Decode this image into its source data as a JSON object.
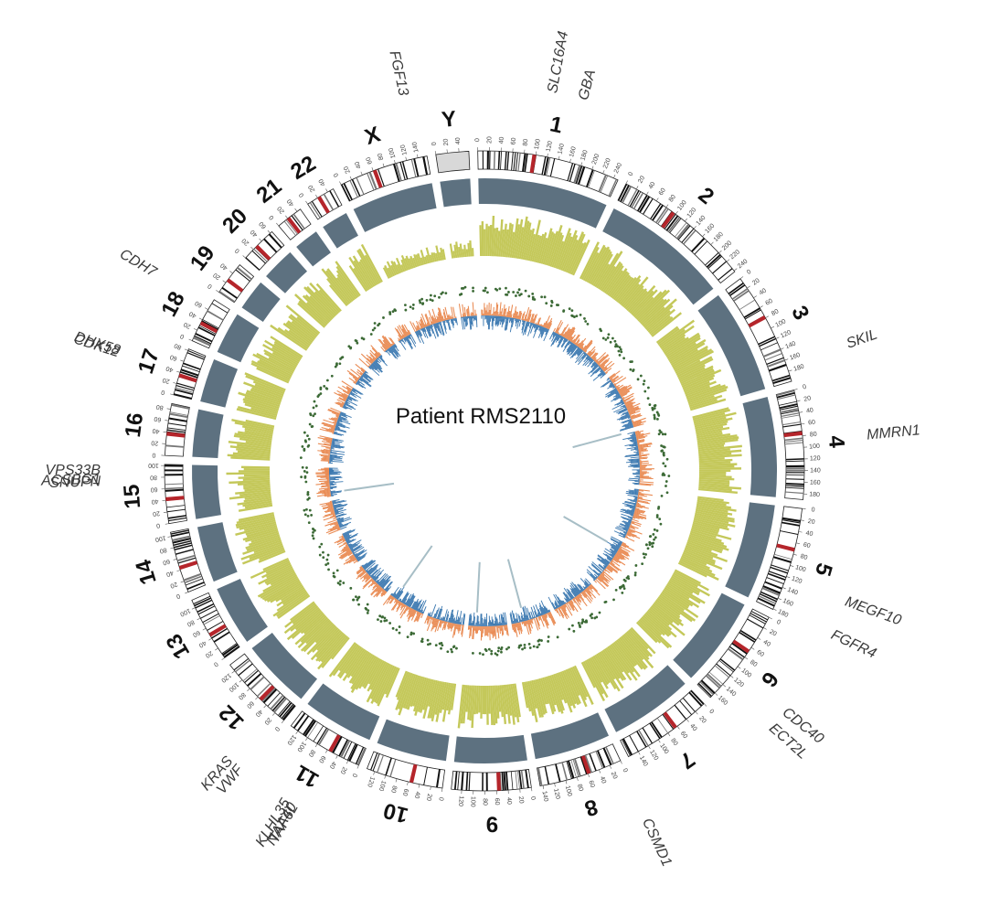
{
  "title": "Patient RMS2110",
  "colors": {
    "cnv_block": "#5d7180",
    "baf_fill": "#c4c85a",
    "depth_orange": "#e98a52",
    "depth_blue": "#3b78b0",
    "sv_points": "#3c6a36",
    "ideogram_band": "#111111",
    "centromere": "#b5252b",
    "gene_highlight": "#9d6bff"
  },
  "chromosomes": [
    {
      "name": "1",
      "length": 248,
      "ticks": [
        "0",
        "20",
        "40",
        "60",
        "80",
        "100",
        "120",
        "140",
        "160",
        "180",
        "200",
        "220",
        "240"
      ]
    },
    {
      "name": "2",
      "length": 242,
      "ticks": [
        "0",
        "20",
        "40",
        "60",
        "80",
        "100",
        "120",
        "140",
        "160",
        "180",
        "200",
        "220",
        "240"
      ]
    },
    {
      "name": "3",
      "length": 198,
      "ticks": [
        "0",
        "20",
        "40",
        "60",
        "80",
        "100",
        "120",
        "140",
        "160",
        "180"
      ]
    },
    {
      "name": "4",
      "length": 190,
      "ticks": [
        "0",
        "20",
        "40",
        "60",
        "80",
        "100",
        "120",
        "140",
        "160",
        "180"
      ]
    },
    {
      "name": "5",
      "length": 181,
      "ticks": [
        "0",
        "20",
        "40",
        "60",
        "80",
        "100",
        "120",
        "140",
        "160",
        "180"
      ]
    },
    {
      "name": "6",
      "length": 171,
      "ticks": [
        "0",
        "20",
        "40",
        "60",
        "80",
        "100",
        "120",
        "140",
        "160"
      ]
    },
    {
      "name": "7",
      "length": 159,
      "ticks": [
        "0",
        "20",
        "40",
        "60",
        "80",
        "100",
        "120",
        "140"
      ]
    },
    {
      "name": "8",
      "length": 145,
      "ticks": [
        "0",
        "20",
        "40",
        "60",
        "80",
        "100",
        "120",
        "140"
      ]
    },
    {
      "name": "9",
      "length": 138,
      "ticks": [
        "0",
        "20",
        "40",
        "60",
        "80",
        "100",
        "120"
      ]
    },
    {
      "name": "10",
      "length": 134,
      "ticks": [
        "0",
        "20",
        "40",
        "60",
        "80",
        "100",
        "120"
      ]
    },
    {
      "name": "11",
      "length": 135,
      "ticks": [
        "0",
        "20",
        "40",
        "60",
        "80",
        "100",
        "120"
      ]
    },
    {
      "name": "12",
      "length": 133,
      "ticks": [
        "0",
        "20",
        "40",
        "60",
        "80",
        "100",
        "120"
      ]
    },
    {
      "name": "13",
      "length": 114,
      "ticks": [
        "0",
        "20",
        "40",
        "60",
        "80",
        "100"
      ]
    },
    {
      "name": "14",
      "length": 107,
      "ticks": [
        "0",
        "20",
        "40",
        "60",
        "80",
        "100"
      ]
    },
    {
      "name": "15",
      "length": 102,
      "ticks": [
        "0",
        "20",
        "40",
        "60",
        "80",
        "100"
      ]
    },
    {
      "name": "16",
      "length": 90,
      "ticks": [
        "0",
        "20",
        "40",
        "60",
        "80"
      ]
    },
    {
      "name": "17",
      "length": 83,
      "ticks": [
        "0",
        "20",
        "40",
        "60",
        "80"
      ]
    },
    {
      "name": "18",
      "length": 80,
      "ticks": [
        "0",
        "20",
        "40",
        "60"
      ]
    },
    {
      "name": "19",
      "length": 59,
      "ticks": [
        "0",
        "20",
        "40"
      ]
    },
    {
      "name": "20",
      "length": 64,
      "ticks": [
        "0",
        "20",
        "40",
        "60"
      ]
    },
    {
      "name": "21",
      "length": 47,
      "ticks": [
        "0",
        "20",
        "40"
      ]
    },
    {
      "name": "22",
      "length": 51,
      "ticks": [
        "0",
        "20",
        "40"
      ]
    },
    {
      "name": "X",
      "length": 156,
      "ticks": [
        "0",
        "20",
        "40",
        "60",
        "80",
        "100",
        "120",
        "140"
      ]
    },
    {
      "name": "Y",
      "length": 57,
      "ticks": [
        "0",
        "20",
        "40"
      ]
    }
  ],
  "genes": [
    {
      "label": "SLC16A4",
      "chr": "1",
      "pos": 110
    },
    {
      "label": "GBA",
      "chr": "1",
      "pos": 155
    },
    {
      "label": "SKIL",
      "chr": "3",
      "pos": 170
    },
    {
      "label": "MMRN1",
      "chr": "4",
      "pos": 90
    },
    {
      "label": "MEGF10",
      "chr": "5",
      "pos": 126
    },
    {
      "label": "FGFR4",
      "chr": "5",
      "pos": 177
    },
    {
      "label": "CDC40",
      "chr": "6",
      "pos": 110
    },
    {
      "label": "ECT2L",
      "chr": "6",
      "pos": 139
    },
    {
      "label": "CSMD1",
      "chr": "8",
      "pos": 3
    },
    {
      "label": "TAF6L",
      "chr": "11",
      "pos": 62
    },
    {
      "label": "NAA40",
      "chr": "11",
      "pos": 64,
      "highlight": true
    },
    {
      "label": "KLHL35",
      "chr": "11",
      "pos": 75
    },
    {
      "label": "VWF",
      "chr": "12",
      "pos": 6
    },
    {
      "label": "KRAS",
      "chr": "12",
      "pos": 25
    },
    {
      "label": "SNUPN",
      "chr": "15",
      "pos": 75
    },
    {
      "label": "ACSBG1",
      "chr": "15",
      "pos": 78
    },
    {
      "label": "VPS33B",
      "chr": "15",
      "pos": 91
    },
    {
      "label": "CDK12",
      "chr": "17",
      "pos": 39
    },
    {
      "label": "DHX58",
      "chr": "17",
      "pos": 42
    },
    {
      "label": "CDH7",
      "chr": "18",
      "pos": 66
    },
    {
      "label": "FGF13",
      "chr": "X",
      "pos": 138
    }
  ]
}
